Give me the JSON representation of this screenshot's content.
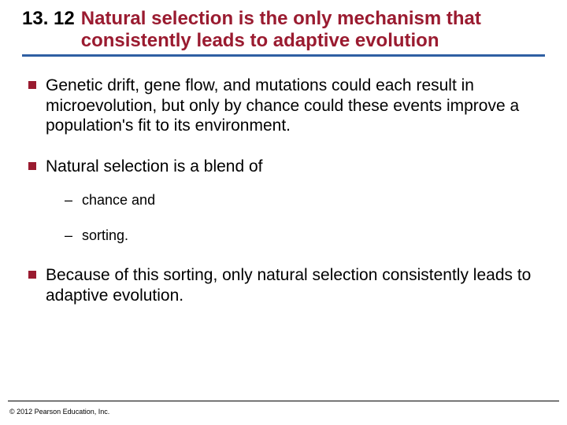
{
  "title": {
    "number": "13. 12",
    "text": "Natural selection is the only mechanism that consistently leads to adaptive evolution",
    "text_color": "#9a1b30",
    "number_color": "#000000",
    "fontsize": 24,
    "fontweight": "bold"
  },
  "rule_color": "#2f5fa3",
  "bullet_color": "#9a1b30",
  "body_fontsize": 21,
  "sub_fontsize": 18,
  "bullets": [
    {
      "text": "Genetic drift, gene flow, and mutations could each result in microevolution, but only by chance could these events improve a population's fit to its environment."
    },
    {
      "text": "Natural selection is a blend of",
      "sub": [
        "chance and",
        "sorting."
      ]
    },
    {
      "text": "Because of this sorting, only natural selection consistently leads to adaptive evolution."
    }
  ],
  "copyright": "© 2012 Pearson Education, Inc.",
  "background_color": "#ffffff"
}
